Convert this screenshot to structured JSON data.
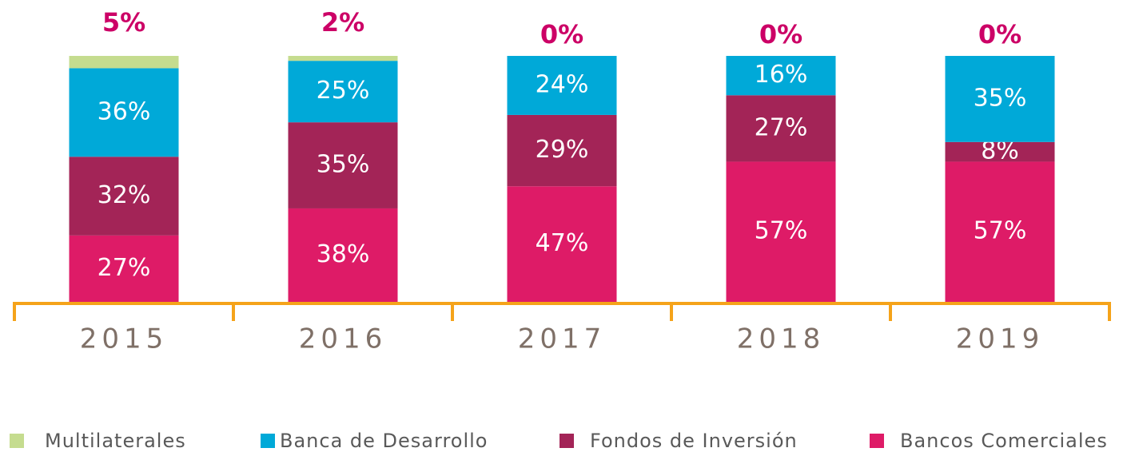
{
  "chart_data": {
    "type": "stacked_bar",
    "categories": [
      "2015",
      "2016",
      "2017",
      "2018",
      "2019"
    ],
    "series": [
      {
        "name": "Multilaterales",
        "color": "#c5dc8f",
        "values": [
          5,
          2,
          0,
          0,
          0
        ],
        "value_labels": [
          "5%",
          "2%",
          "0%",
          "0%",
          "0%"
        ]
      },
      {
        "name": "Banca de Desarrollo",
        "color": "#00a9d8",
        "values": [
          36,
          25,
          24,
          16,
          35
        ],
        "value_labels": [
          "36%",
          "25%",
          "24%",
          "16%",
          "35%"
        ]
      },
      {
        "name": "Fondos de Inversión",
        "color": "#a32457",
        "values": [
          32,
          35,
          29,
          27,
          8
        ],
        "value_labels": [
          "32%",
          "35%",
          "29%",
          "27%",
          "8%"
        ]
      },
      {
        "name": "Bancos Comerciales",
        "color": "#de1b67",
        "values": [
          27,
          38,
          47,
          57,
          57
        ],
        "value_labels": [
          "27%",
          "38%",
          "47%",
          "57%",
          "57%"
        ]
      }
    ]
  }
}
